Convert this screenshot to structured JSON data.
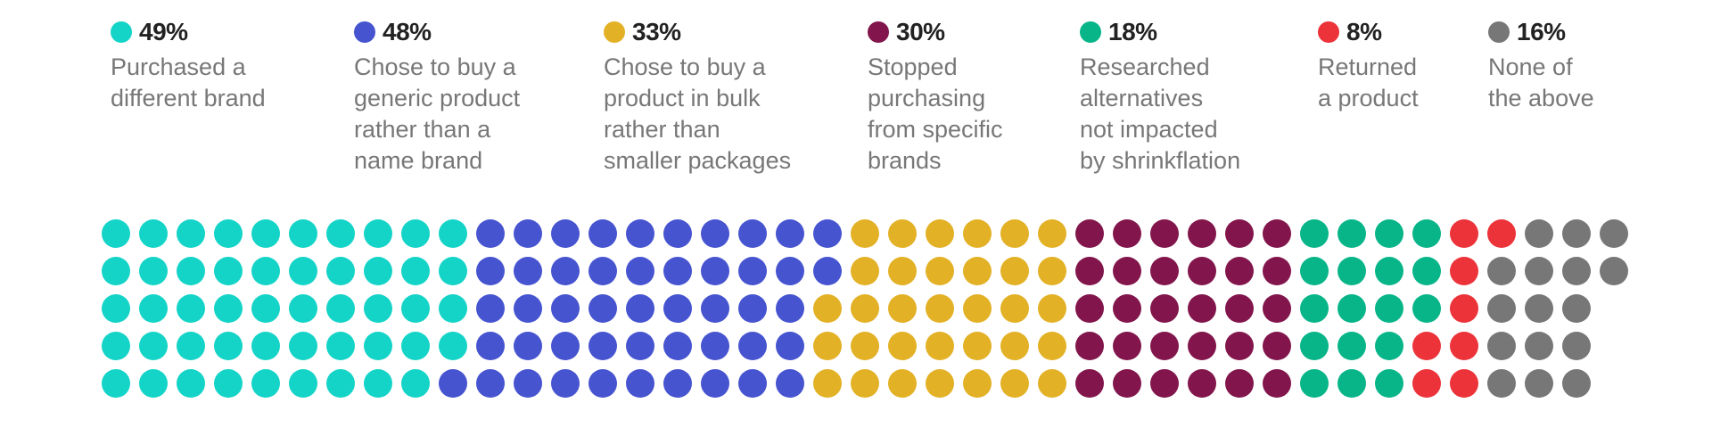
{
  "chart_data": {
    "type": "waffle",
    "unit": "each dot represents 1% of respondents",
    "rows": 5,
    "series": [
      {
        "value": 49,
        "pct_label": "49%",
        "label": "Purchased a\ndifferent brand",
        "color": "#14d4c8"
      },
      {
        "value": 48,
        "pct_label": "48%",
        "label": "Chose to buy a\ngeneric product\nrather than a\nname brand",
        "color": "#4654d0"
      },
      {
        "value": 33,
        "pct_label": "33%",
        "label": "Chose to buy a\nproduct in bulk\nrather than\nsmaller packages",
        "color": "#e3b125"
      },
      {
        "value": 30,
        "pct_label": "30%",
        "label": "Stopped\npurchasing\nfrom specific\nbrands",
        "color": "#82164c"
      },
      {
        "value": 18,
        "pct_label": "18%",
        "label": "Researched\nalternatives\nnot impacted\nby shrinkflation",
        "color": "#07b589"
      },
      {
        "value": 8,
        "pct_label": "8%",
        "label": "Returned\na product",
        "color": "#ec333a"
      },
      {
        "value": 16,
        "pct_label": "16%",
        "label": "None of\nthe above",
        "color": "#777777"
      }
    ]
  }
}
